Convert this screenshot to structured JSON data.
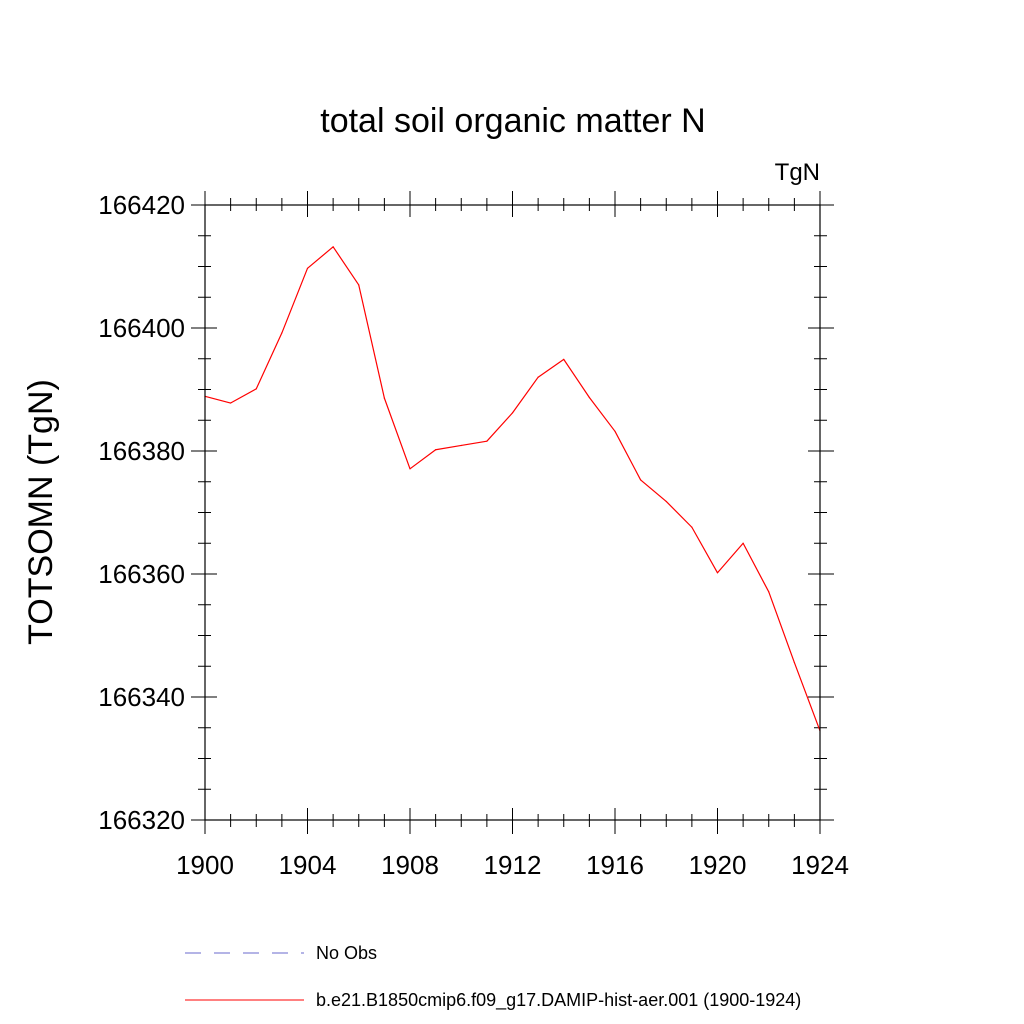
{
  "chart_data": {
    "type": "line",
    "title": "total soil organic matter N",
    "units_label": "TgN",
    "xlabel": "",
    "ylabel": "TOTSOMN  (TgN)",
    "xlim": [
      1900,
      1924
    ],
    "ylim": [
      166320,
      166420
    ],
    "x_ticks": [
      1900,
      1904,
      1908,
      1912,
      1916,
      1920,
      1924
    ],
    "y_ticks": [
      166320,
      166340,
      166360,
      166380,
      166400,
      166420
    ],
    "grid": false,
    "legend_position": "bottom",
    "x": [
      1900,
      1901,
      1902,
      1903,
      1904,
      1905,
      1906,
      1907,
      1908,
      1909,
      1910,
      1911,
      1912,
      1913,
      1914,
      1915,
      1916,
      1917,
      1918,
      1919,
      1920,
      1921,
      1922,
      1923,
      1924
    ],
    "series": [
      {
        "name": "b.e21.B1850cmip6.f09_g17.DAMIP-hist-aer.001 (1900-1924)",
        "color": "#ff0000",
        "dash": "solid",
        "values": [
          166388.9,
          166387.8,
          166390.1,
          166399.2,
          166409.7,
          166413.2,
          166407.0,
          166388.6,
          166377.1,
          166380.2,
          166380.9,
          166381.6,
          166386.2,
          166392.0,
          166394.9,
          166388.7,
          166383.2,
          166375.3,
          166371.8,
          166367.6,
          166360.2,
          166365.0,
          166357.1,
          166345.6,
          166334.5
        ]
      }
    ],
    "legend": [
      {
        "label": "No Obs",
        "color": "#6a6acd",
        "dash": "dashed"
      },
      {
        "label": "b.e21.B1850cmip6.f09_g17.DAMIP-hist-aer.001 (1900-1924)",
        "color": "#ff0000",
        "dash": "solid"
      }
    ]
  }
}
